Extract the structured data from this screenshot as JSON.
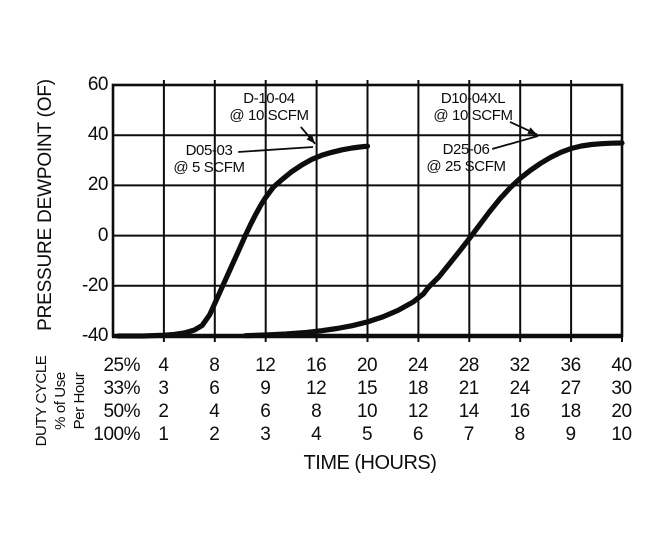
{
  "colors": {
    "ink": "#0d0d0d",
    "background": "#ffffff"
  },
  "y_axis": {
    "label": "PRESSURE DEWPOINT (OF)",
    "ticks": [
      "60",
      "40",
      "20",
      "0",
      "-20",
      "-40"
    ]
  },
  "x_axis": {
    "label": "TIME (HOURS)"
  },
  "duty_table": {
    "side_label_line1": "DUTY CYCLE",
    "side_label_line2": "% of Use",
    "side_label_line3": "Per Hour",
    "rows": [
      {
        "duty": "25%",
        "values": [
          "4",
          "8",
          "12",
          "16",
          "20",
          "24",
          "28",
          "32",
          "36",
          "40"
        ]
      },
      {
        "duty": "33%",
        "values": [
          "3",
          "6",
          "9",
          "12",
          "15",
          "18",
          "21",
          "24",
          "27",
          "30"
        ]
      },
      {
        "duty": "50%",
        "values": [
          "2",
          "4",
          "6",
          "8",
          "10",
          "12",
          "14",
          "16",
          "18",
          "20"
        ]
      },
      {
        "duty": "100%",
        "values": [
          "1",
          "2",
          "3",
          "4",
          "5",
          "6",
          "7",
          "8",
          "9",
          "10"
        ]
      }
    ]
  },
  "chart_data": {
    "type": "line",
    "title": "",
    "xlabel": "TIME (HOURS)",
    "ylabel": "PRESSURE DEWPOINT (OF)",
    "xlim": [
      0,
      10
    ],
    "ylim": [
      -40,
      60
    ],
    "grid": true,
    "x_gridlines": [
      1,
      2,
      3,
      4,
      5,
      6,
      7,
      8,
      9
    ],
    "y_gridlines": [
      40,
      20,
      0,
      -20
    ],
    "y_ticks": [
      60,
      40,
      20,
      0,
      -20,
      -40
    ],
    "x_axis_note": "x scale shown as duty-cycle table: 25%/33%/50%/100% of use per hour",
    "series": [
      {
        "name": "D05-03 @ 5 SCFM / D-10-04 @ 10 SCFM",
        "points": [
          [
            0.1,
            -40
          ],
          [
            0.6,
            -40
          ],
          [
            1.0,
            -39.7
          ],
          [
            1.2,
            -39.4
          ],
          [
            1.4,
            -38.8
          ],
          [
            1.6,
            -37.6
          ],
          [
            1.75,
            -35.8
          ],
          [
            1.9,
            -31.5
          ],
          [
            2.0,
            -27
          ],
          [
            2.1,
            -22.5
          ],
          [
            2.2,
            -18
          ],
          [
            2.3,
            -13.5
          ],
          [
            2.4,
            -9
          ],
          [
            2.5,
            -4.5
          ],
          [
            2.6,
            0
          ],
          [
            2.7,
            4.3
          ],
          [
            2.8,
            8.3
          ],
          [
            2.9,
            12
          ],
          [
            3.0,
            15.2
          ],
          [
            3.15,
            19.3
          ],
          [
            3.3,
            22
          ],
          [
            3.5,
            25.3
          ],
          [
            3.7,
            28
          ],
          [
            3.9,
            30.3
          ],
          [
            4.1,
            32
          ],
          [
            4.3,
            33.2
          ],
          [
            4.5,
            34.2
          ],
          [
            4.7,
            34.9
          ],
          [
            4.85,
            35.3
          ],
          [
            5.0,
            35.6
          ]
        ]
      },
      {
        "name": "D25-06 @ 25 SCFM / D10-04XL @ 10 SCFM",
        "points": [
          [
            2.6,
            -39.9
          ],
          [
            3.0,
            -39.6
          ],
          [
            3.4,
            -39.2
          ],
          [
            3.8,
            -38.6
          ],
          [
            4.1,
            -37.9
          ],
          [
            4.4,
            -37
          ],
          [
            4.7,
            -35.9
          ],
          [
            5.0,
            -34.4
          ],
          [
            5.3,
            -32.4
          ],
          [
            5.6,
            -29.8
          ],
          [
            5.9,
            -26.4
          ],
          [
            6.1,
            -23.2
          ],
          [
            6.2,
            -20.5
          ],
          [
            6.4,
            -16.5
          ],
          [
            6.6,
            -11.5
          ],
          [
            6.8,
            -6.4
          ],
          [
            7.0,
            -1.2
          ],
          [
            7.2,
            4.2
          ],
          [
            7.4,
            9.6
          ],
          [
            7.6,
            14.6
          ],
          [
            7.8,
            19
          ],
          [
            8.0,
            22.8
          ],
          [
            8.2,
            26
          ],
          [
            8.4,
            28.8
          ],
          [
            8.6,
            31.2
          ],
          [
            8.8,
            33.2
          ],
          [
            9.0,
            34.7
          ],
          [
            9.2,
            35.7
          ],
          [
            9.4,
            36.3
          ],
          [
            9.6,
            36.6
          ],
          [
            9.8,
            36.8
          ],
          [
            10.0,
            36.9
          ]
        ]
      }
    ],
    "annotations": [
      {
        "lines": [
          "D-10-04",
          "@ 10 SCFM"
        ],
        "leader": {
          "x1": 3.69,
          "y1": 43.3,
          "x2": 3.97,
          "y2": 36.6,
          "arrow": true
        }
      },
      {
        "lines": [
          "D05-03",
          "@ 5 SCFM"
        ],
        "leader": {
          "x1": 2.46,
          "y1": 33.3,
          "x2": 3.93,
          "y2": 35.3,
          "arrow": false
        }
      },
      {
        "lines": [
          "D10-04XL",
          "@ 10 SCFM"
        ],
        "leader": {
          "x1": 7.8,
          "y1": 45.3,
          "x2": 8.33,
          "y2": 40.3,
          "arrow": true
        }
      },
      {
        "lines": [
          "D25-06",
          "@ 25 SCFM"
        ],
        "leader": {
          "x1": 7.45,
          "y1": 34.5,
          "x2": 8.35,
          "y2": 39.7,
          "arrow": false
        }
      }
    ],
    "legend_position": "annotated-on-curves"
  }
}
